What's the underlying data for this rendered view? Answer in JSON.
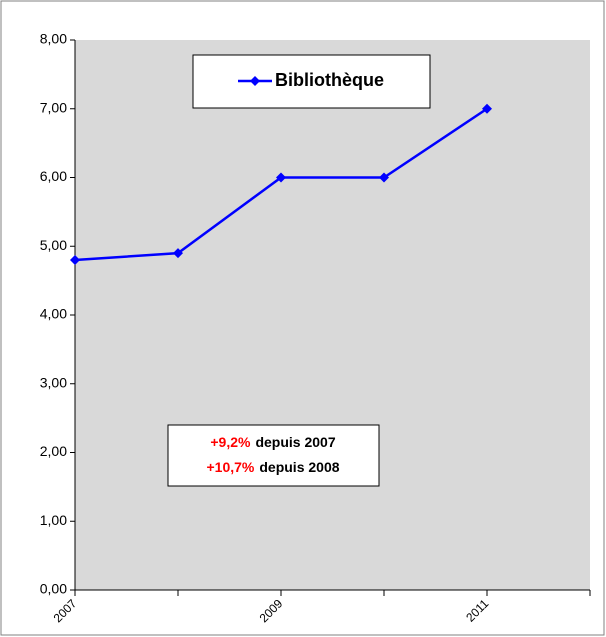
{
  "chart_data": {
    "type": "line",
    "categories": [
      "2007",
      null,
      "2009",
      null,
      "2011"
    ],
    "series": [
      {
        "name": "Bibliothèque",
        "color": "#0000ff",
        "values": [
          4.8,
          4.9,
          6.0,
          6.0,
          7.0
        ]
      }
    ],
    "ylim": [
      0,
      8
    ],
    "yticks": [
      {
        "value": 0,
        "label": "0,00"
      },
      {
        "value": 1,
        "label": "1,00"
      },
      {
        "value": 2,
        "label": "2,00"
      },
      {
        "value": 3,
        "label": "3,00"
      },
      {
        "value": 4,
        "label": "4,00"
      },
      {
        "value": 5,
        "label": "5,00"
      },
      {
        "value": 6,
        "label": "6,00"
      },
      {
        "value": 7,
        "label": "7,00"
      },
      {
        "value": 8,
        "label": "8,00"
      }
    ],
    "legend": "top",
    "plot_background": "#d9d9d9",
    "annotations": [
      {
        "highlight": "+9,2%",
        "text": "depuis 2007"
      },
      {
        "highlight": "+10,7%",
        "text": "depuis 2008"
      }
    ]
  }
}
